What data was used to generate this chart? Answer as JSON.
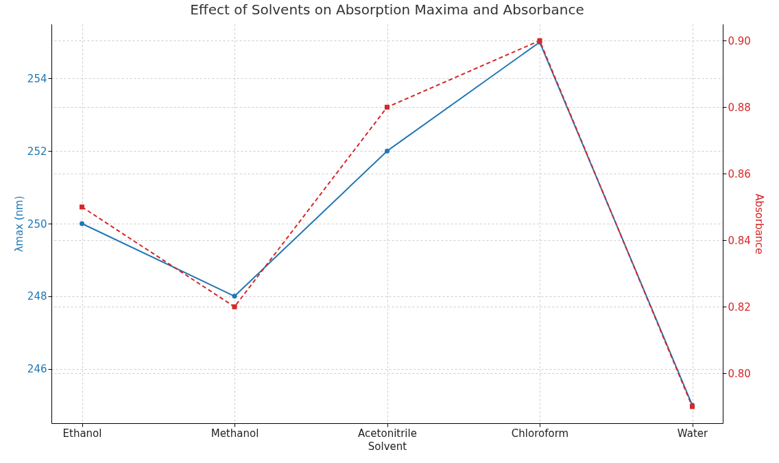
{
  "chart_data": {
    "type": "line",
    "title": "Effect of Solvents on Absorption Maxima and Absorbance",
    "xlabel": "Solvent",
    "ylabel": "λmax (nm)",
    "y2label": "Absorbance",
    "categories": [
      "Ethanol",
      "Methanol",
      "Acetonitrile",
      "Chloroform",
      "Water"
    ],
    "series": [
      {
        "color": "#1f77b4",
        "values": [
          250,
          248,
          252,
          255,
          245
        ],
        "marker": "circle",
        "line_style": "solid"
      },
      {
        "color": "#d62728",
        "values": [
          0.85,
          0.82,
          0.88,
          0.9,
          0.79
        ],
        "marker": "square",
        "line_style": "dashed",
        "axis": "y2"
      }
    ],
    "ylim": [
      244.5,
      255.5
    ],
    "yticks": [
      246,
      248,
      250,
      252,
      254
    ],
    "y2lim": [
      0.785,
      0.905
    ],
    "y2ticks": [
      {
        "value": 0.8,
        "label": "0.80"
      },
      {
        "value": 0.82,
        "label": "0.82"
      },
      {
        "value": 0.84,
        "label": "0.84"
      },
      {
        "value": 0.86,
        "label": "0.86"
      },
      {
        "value": 0.88,
        "label": "0.88"
      },
      {
        "value": 0.9,
        "label": "0.90"
      }
    ],
    "grid": true
  }
}
